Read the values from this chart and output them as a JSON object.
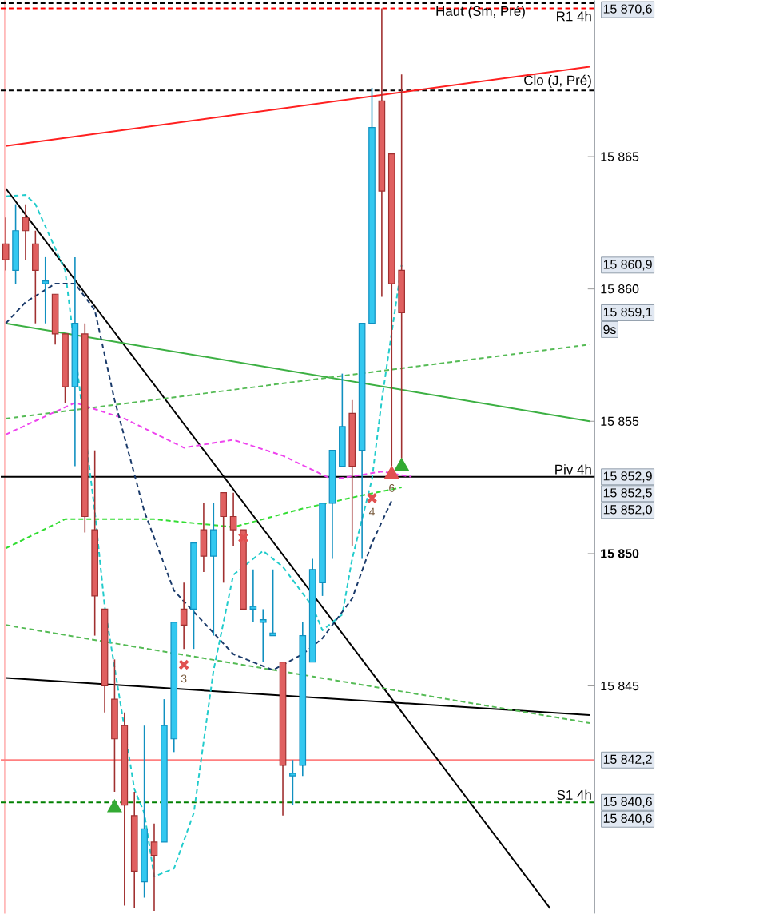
{
  "chart_data": {
    "type": "candlestick",
    "categories": [
      null,
      null,
      null,
      null,
      null,
      null,
      null,
      null,
      null,
      null,
      null,
      null,
      null,
      null,
      null,
      null,
      null,
      null,
      null,
      null,
      null,
      null,
      null,
      null,
      null,
      null,
      null,
      null,
      null,
      null,
      null,
      null,
      null,
      null,
      null,
      null,
      null,
      null,
      null,
      null,
      null,
      null,
      null,
      null,
      null,
      null,
      null,
      null,
      null,
      null,
      null,
      null,
      null,
      null,
      null,
      null,
      null,
      null,
      null,
      null
    ],
    "ohlc": [
      [
        15861.7,
        15862.7,
        15860.7,
        15861.1
      ],
      [
        15860.7,
        15863.2,
        15860.2,
        15862.2
      ],
      [
        15862.7,
        15863.2,
        15861.1,
        15862.2
      ],
      [
        15861.7,
        15862.2,
        15858.7,
        15860.7
      ],
      [
        15860.2,
        15861.2,
        15858.7,
        15860.3
      ],
      [
        15859.8,
        15859.8,
        15857.9,
        15858.3
      ],
      [
        15858.3,
        15858.3,
        15855.7,
        15856.3
      ],
      [
        15856.3,
        15861.2,
        15853.3,
        15858.7
      ],
      [
        15858.3,
        15858.7,
        15850.8,
        15851.4
      ],
      [
        15850.9,
        15853.9,
        15846.9,
        15848.4
      ],
      [
        15847.9,
        15847.9,
        15844.0,
        15845.0
      ],
      [
        15844.5,
        15846.0,
        15841.0,
        15843.0
      ],
      [
        15843.5,
        15844.0,
        15836.7,
        15840.5
      ],
      [
        15840.1,
        15841.0,
        15836.6,
        15838.0
      ],
      [
        15837.6,
        15843.5,
        15837.0,
        15839.6
      ],
      [
        15839.1,
        15839.8,
        15836.5,
        15838.6
      ],
      [
        15839.1,
        15844.5,
        15839.1,
        15843.5
      ],
      [
        15843.0,
        15847.4,
        15842.5,
        15847.4
      ],
      [
        15847.9,
        15848.9,
        15846.4,
        15847.3
      ],
      [
        15847.9,
        15850.4,
        15846.4,
        15850.4
      ],
      [
        15850.9,
        15851.9,
        15849.3,
        15849.9
      ],
      [
        15849.9,
        15851.9,
        15846.9,
        15850.9
      ],
      [
        15852.3,
        15852.3,
        15848.9,
        15851.4
      ],
      [
        15851.4,
        15852.3,
        15850.3,
        15850.9
      ],
      [
        15850.9,
        15850.9,
        15847.9,
        15847.9
      ],
      [
        15847.9,
        15849.4,
        15847.4,
        15848.0
      ],
      [
        15847.4,
        15847.9,
        15845.9,
        15847.5
      ],
      [
        15846.9,
        15849.4,
        15846.9,
        15847.0
      ],
      [
        15845.9,
        15845.9,
        15840.1,
        15842.0
      ],
      [
        15841.6,
        15842.2,
        15840.5,
        15841.7
      ],
      [
        15842.0,
        15847.4,
        15841.6,
        15846.9
      ],
      [
        15845.9,
        15849.8,
        15845.9,
        15849.4
      ],
      [
        15848.9,
        15851.9,
        15848.4,
        15851.9
      ],
      [
        15851.9,
        15853.9,
        15849.8,
        15853.9
      ],
      [
        15853.3,
        15856.8,
        15853.3,
        15854.8
      ],
      [
        15855.3,
        15855.8,
        15850.3,
        15853.3
      ],
      [
        15853.9,
        15858.7,
        15849.8,
        15858.7
      ],
      [
        15858.7,
        15867.6,
        15858.7,
        15866.1
      ],
      [
        15867.1,
        15870.6,
        15859.7,
        15863.7
      ],
      [
        15865.1,
        15865.1,
        15853.3,
        15860.2
      ],
      [
        15860.7,
        15868.1,
        15853.6,
        15859.1
      ],
      null,
      null,
      null,
      null,
      null,
      null,
      null,
      null,
      null,
      null,
      null,
      null,
      null,
      null,
      null,
      null,
      null,
      null,
      null
    ],
    "series": [
      {
        "type": "line",
        "color": "#ff2020",
        "line_style": "solid",
        "values": [
          15865.4,
          null,
          null,
          null,
          null,
          null,
          null,
          null,
          null,
          null,
          null,
          null,
          null,
          null,
          null,
          null,
          null,
          null,
          null,
          null,
          null,
          null,
          null,
          null,
          null,
          null,
          null,
          null,
          null,
          null,
          null,
          null,
          null,
          null,
          null,
          null,
          null,
          null,
          null,
          null,
          null,
          null,
          null,
          null,
          null,
          null,
          null,
          null,
          null,
          null,
          null,
          null,
          null,
          null,
          null,
          null,
          null,
          null,
          null,
          15868.4
        ]
      },
      {
        "type": "line",
        "color": "#000000",
        "line_style": "solid",
        "values": [
          15863.8,
          null,
          null,
          null,
          null,
          null,
          null,
          null,
          null,
          null,
          null,
          null,
          null,
          null,
          null,
          null,
          null,
          null,
          null,
          null,
          null,
          null,
          null,
          null,
          null,
          null,
          null,
          null,
          null,
          null,
          null,
          null,
          null,
          null,
          null,
          null,
          null,
          null,
          null,
          null,
          null,
          null,
          null,
          null,
          null,
          null,
          null,
          null,
          null,
          null,
          null,
          null,
          null,
          null,
          null,
          15836.6,
          null,
          null,
          null,
          null
        ]
      },
      {
        "type": "line",
        "color": "#3cb043",
        "line_style": "solid",
        "values": [
          15858.7,
          null,
          null,
          null,
          null,
          null,
          null,
          null,
          null,
          null,
          null,
          null,
          null,
          null,
          null,
          null,
          null,
          null,
          null,
          null,
          null,
          null,
          null,
          null,
          null,
          null,
          null,
          null,
          null,
          null,
          null,
          null,
          null,
          null,
          null,
          null,
          null,
          null,
          null,
          null,
          null,
          null,
          null,
          null,
          null,
          null,
          null,
          null,
          null,
          null,
          null,
          null,
          null,
          null,
          null,
          null,
          null,
          null,
          null,
          15855.0
        ]
      },
      {
        "type": "line",
        "color": "#000000",
        "line_style": "solid",
        "values": [
          15845.3,
          null,
          null,
          null,
          null,
          null,
          null,
          null,
          null,
          null,
          null,
          null,
          null,
          null,
          null,
          null,
          null,
          null,
          null,
          null,
          null,
          null,
          null,
          null,
          null,
          null,
          null,
          null,
          null,
          null,
          null,
          null,
          null,
          null,
          null,
          null,
          null,
          null,
          null,
          null,
          null,
          null,
          null,
          null,
          null,
          null,
          null,
          null,
          null,
          null,
          null,
          null,
          null,
          null,
          null,
          null,
          null,
          null,
          null,
          15843.9
        ]
      },
      {
        "type": "line",
        "color": "#55bb55",
        "line_style": "dashed",
        "values": [
          15855.1,
          null,
          null,
          null,
          null,
          null,
          null,
          null,
          null,
          null,
          null,
          null,
          null,
          null,
          null,
          null,
          null,
          null,
          null,
          null,
          null,
          null,
          null,
          null,
          null,
          null,
          null,
          null,
          null,
          null,
          null,
          null,
          null,
          null,
          null,
          null,
          null,
          null,
          null,
          null,
          null,
          null,
          null,
          null,
          null,
          null,
          null,
          null,
          null,
          null,
          null,
          null,
          null,
          null,
          null,
          null,
          null,
          null,
          null,
          15857.9
        ]
      },
      {
        "type": "line",
        "color": "#55bb55",
        "line_style": "dashed",
        "values": [
          15847.3,
          null,
          null,
          null,
          null,
          null,
          null,
          null,
          null,
          null,
          null,
          null,
          null,
          null,
          null,
          null,
          null,
          null,
          null,
          null,
          null,
          null,
          null,
          null,
          null,
          null,
          null,
          null,
          null,
          null,
          null,
          null,
          null,
          null,
          null,
          null,
          null,
          null,
          null,
          null,
          null,
          null,
          null,
          null,
          null,
          null,
          null,
          null,
          null,
          null,
          null,
          null,
          null,
          null,
          null,
          null,
          null,
          null,
          null,
          15843.6
        ]
      },
      {
        "type": "line",
        "color": "#33dd33",
        "line_style": "dashed",
        "values": [
          15850.2,
          null,
          null,
          null,
          null,
          null,
          15851.3,
          null,
          null,
          null,
          null,
          null,
          null,
          null,
          null,
          15851.3,
          null,
          null,
          null,
          null,
          null,
          null,
          null,
          15851.0,
          null,
          null,
          null,
          null,
          null,
          null,
          15851.7,
          null,
          null,
          null,
          null,
          null,
          15852.2,
          null,
          null,
          null,
          15852.5,
          null,
          null,
          null,
          null,
          null,
          null,
          null,
          null,
          null,
          null,
          null,
          null,
          null,
          null,
          null,
          null,
          null,
          null,
          null
        ]
      },
      {
        "type": "line",
        "color": "#ee44ee",
        "line_style": "dashed",
        "values": [
          15854.5,
          null,
          null,
          null,
          null,
          null,
          null,
          15855.7,
          null,
          null,
          null,
          null,
          15855.1,
          null,
          null,
          null,
          null,
          null,
          15854.0,
          null,
          null,
          null,
          null,
          15854.3,
          null,
          null,
          null,
          null,
          15853.7,
          null,
          null,
          null,
          null,
          15852.8,
          null,
          null,
          null,
          null,
          15853.1,
          null,
          null,
          15852.9,
          null,
          null,
          null,
          null,
          null,
          null,
          null,
          null,
          null,
          null,
          null,
          null,
          null,
          null,
          null,
          null,
          null,
          null
        ]
      },
      {
        "type": "line",
        "color": "#22cccc",
        "line_style": "dashed",
        "values": [
          15863.5,
          null,
          15863.55,
          15863.2,
          null,
          null,
          15860.7,
          null,
          null,
          15851.6,
          15848.0,
          null,
          null,
          15841.1,
          15840.2,
          15837.8,
          null,
          15838.1,
          null,
          15840.2,
          null,
          15845.6,
          null,
          15849.2,
          null,
          null,
          15850.1,
          null,
          15849.5,
          null,
          null,
          15848.0,
          15847.1,
          null,
          15847.7,
          15849.8,
          null,
          15852.8,
          15855.8,
          null,
          15860.9,
          null,
          null,
          null,
          null,
          null,
          null,
          null,
          null,
          null,
          null,
          null,
          null,
          null,
          null,
          null,
          null,
          null,
          null,
          null
        ]
      },
      {
        "type": "line",
        "color": "#1a3a6a",
        "line_style": "dashed",
        "values": [
          15858.7,
          null,
          15859.5,
          null,
          null,
          15860.2,
          null,
          15860.2,
          null,
          15859.2,
          null,
          15855.8,
          null,
          null,
          15851.6,
          null,
          null,
          15848.6,
          null,
          null,
          15847.4,
          null,
          null,
          15846.2,
          null,
          null,
          null,
          15845.6,
          null,
          null,
          15846.2,
          null,
          15846.8,
          null,
          null,
          15848.3,
          null,
          15850.4,
          null,
          15852.0,
          null,
          null,
          null,
          null,
          null,
          null,
          null,
          null,
          null,
          null,
          null,
          null,
          null,
          null,
          null,
          null,
          null,
          null,
          null,
          null
        ]
      },
      {
        "type": "scatter",
        "color": "#e05050",
        "marker": "cross",
        "values": [
          null,
          null,
          null,
          null,
          null,
          null,
          null,
          null,
          null,
          null,
          null,
          null,
          null,
          null,
          null,
          null,
          null,
          null,
          15845.8,
          null,
          null,
          null,
          null,
          null,
          15850.6,
          null,
          null,
          null,
          null,
          null,
          null,
          null,
          null,
          null,
          null,
          null,
          null,
          15852.1,
          null,
          null,
          null,
          null,
          null,
          null,
          null,
          null,
          null,
          null,
          null,
          null,
          null,
          null,
          null,
          null,
          null,
          null,
          null,
          null,
          null,
          null
        ]
      },
      {
        "type": "scatter",
        "color": "#33aa33",
        "marker": "triangle",
        "values": [
          null,
          null,
          null,
          null,
          null,
          null,
          null,
          null,
          null,
          null,
          null,
          15840.4,
          null,
          null,
          null,
          null,
          null,
          null,
          null,
          null,
          null,
          null,
          null,
          null,
          null,
          null,
          null,
          null,
          null,
          null,
          null,
          null,
          null,
          null,
          null,
          null,
          null,
          null,
          null,
          null,
          15853.3,
          null,
          null,
          null,
          null,
          null,
          null,
          null,
          null,
          null,
          null,
          null,
          null,
          null,
          null,
          null,
          null,
          null,
          null,
          null
        ]
      },
      {
        "type": "scatter",
        "color": "#e05050",
        "marker": "triangle",
        "values": [
          null,
          null,
          null,
          null,
          null,
          null,
          null,
          null,
          null,
          null,
          null,
          null,
          null,
          null,
          null,
          null,
          null,
          null,
          null,
          null,
          null,
          null,
          null,
          null,
          null,
          null,
          null,
          null,
          null,
          null,
          null,
          null,
          null,
          null,
          null,
          null,
          null,
          null,
          null,
          15853.0,
          null,
          null,
          null,
          null,
          null,
          null,
          null,
          null,
          null,
          null,
          null,
          null,
          null,
          null,
          null,
          null,
          null,
          null,
          null,
          null
        ]
      }
    ],
    "ylim": [
      15836.4,
      15870.9
    ],
    "yticks": [
      {
        "value": 15845,
        "label": "15 845"
      },
      {
        "value": 15850,
        "label": "**15 850**"
      },
      {
        "value": 15855,
        "label": "15 855"
      },
      {
        "value": 15860,
        "label": "15 860"
      },
      {
        "value": 15865,
        "label": "15 865"
      }
    ],
    "tick_labels": "y",
    "ref_lines": [
      {
        "axis": "y",
        "value": 15870.6,
        "label": "R1 4h",
        "color": "#ff0000",
        "line_style": "dashed"
      },
      {
        "axis": "y",
        "value": 15870.8,
        "label": "Haut (Sm, Pré)",
        "color": "#000000",
        "line_style": "dashed"
      },
      {
        "axis": "y",
        "value": 15867.5,
        "label": "Clo (J, Pré)",
        "color": "#000000",
        "line_style": "dashed"
      },
      {
        "axis": "y",
        "value": 15852.9,
        "label": "Piv 4h",
        "color": "#000000",
        "line_style": "solid"
      },
      {
        "axis": "y",
        "value": 15840.6,
        "label": "S1 4h",
        "color": "#008000",
        "line_style": "dashed"
      },
      {
        "axis": "y",
        "value": 15842.2,
        "color": "#ff8080",
        "line_style": "solid"
      }
    ],
    "annotations": [
      "15 870,6",
      "15 860,9",
      "15 859,1",
      "9s",
      "15 852,9",
      "15 852,5",
      "15 852,0",
      "15 842,2",
      "15 840,6",
      "15 840,6",
      "3",
      "4",
      "6"
    ]
  }
}
